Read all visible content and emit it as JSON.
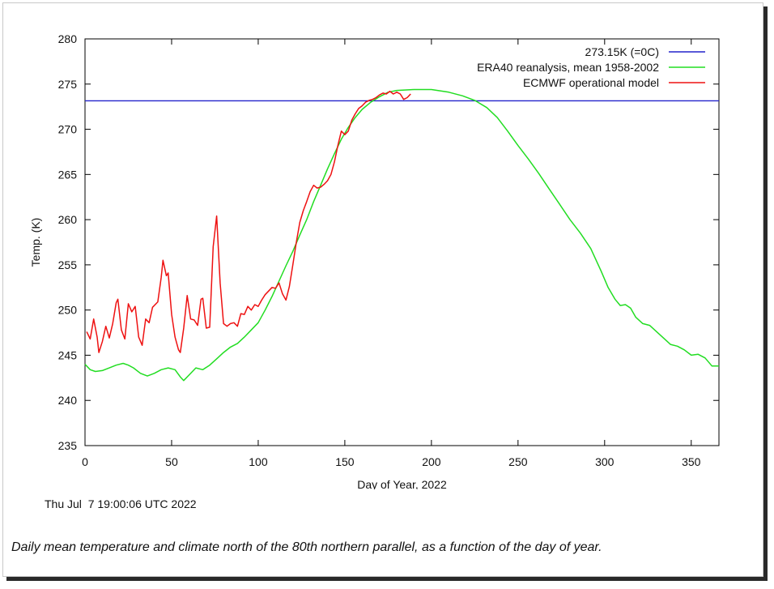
{
  "chart_data": {
    "type": "line",
    "xlabel": "Day of Year, 2022",
    "ylabel": "Temp. (K)",
    "xlim": [
      0,
      366
    ],
    "ylim": [
      235,
      280
    ],
    "xticks": [
      0,
      50,
      100,
      150,
      200,
      250,
      300,
      350
    ],
    "yticks": [
      235,
      240,
      245,
      250,
      255,
      260,
      265,
      270,
      275,
      280
    ],
    "legend_position": "top-right",
    "grid": false,
    "series": [
      {
        "name": "273.15K (=0C)",
        "color": "#2222cc",
        "kind": "hline",
        "y": 273.15
      },
      {
        "name": "ERA40 reanalysis, mean 1958-2002",
        "color": "#22dd22",
        "points": [
          [
            0,
            244.0
          ],
          [
            3,
            243.4
          ],
          [
            6,
            243.2
          ],
          [
            10,
            243.3
          ],
          [
            14,
            243.6
          ],
          [
            18,
            243.9
          ],
          [
            22,
            244.1
          ],
          [
            25,
            243.9
          ],
          [
            28,
            243.6
          ],
          [
            32,
            243.0
          ],
          [
            36,
            242.7
          ],
          [
            40,
            243.0
          ],
          [
            44,
            243.4
          ],
          [
            48,
            243.6
          ],
          [
            52,
            243.4
          ],
          [
            55,
            242.6
          ],
          [
            57,
            242.2
          ],
          [
            60,
            242.8
          ],
          [
            64,
            243.6
          ],
          [
            68,
            243.4
          ],
          [
            72,
            243.9
          ],
          [
            76,
            244.6
          ],
          [
            80,
            245.3
          ],
          [
            84,
            245.9
          ],
          [
            88,
            246.3
          ],
          [
            92,
            247.0
          ],
          [
            96,
            247.8
          ],
          [
            100,
            248.6
          ],
          [
            104,
            250.0
          ],
          [
            108,
            251.5
          ],
          [
            112,
            253.2
          ],
          [
            116,
            254.9
          ],
          [
            120,
            256.5
          ],
          [
            124,
            258.3
          ],
          [
            128,
            260.0
          ],
          [
            132,
            262.0
          ],
          [
            136,
            263.8
          ],
          [
            140,
            265.6
          ],
          [
            144,
            267.3
          ],
          [
            148,
            268.9
          ],
          [
            152,
            270.2
          ],
          [
            156,
            271.3
          ],
          [
            160,
            272.2
          ],
          [
            165,
            273.0
          ],
          [
            170,
            273.6
          ],
          [
            175,
            274.1
          ],
          [
            180,
            274.3
          ],
          [
            190,
            274.4
          ],
          [
            200,
            274.4
          ],
          [
            210,
            274.1
          ],
          [
            218,
            273.7
          ],
          [
            225,
            273.2
          ],
          [
            232,
            272.4
          ],
          [
            238,
            271.3
          ],
          [
            244,
            269.8
          ],
          [
            250,
            268.2
          ],
          [
            256,
            266.7
          ],
          [
            262,
            265.1
          ],
          [
            268,
            263.4
          ],
          [
            274,
            261.7
          ],
          [
            280,
            260.0
          ],
          [
            286,
            258.5
          ],
          [
            292,
            256.8
          ],
          [
            298,
            254.3
          ],
          [
            302,
            252.5
          ],
          [
            306,
            251.2
          ],
          [
            309,
            250.5
          ],
          [
            312,
            250.6
          ],
          [
            315,
            250.2
          ],
          [
            318,
            249.2
          ],
          [
            322,
            248.5
          ],
          [
            326,
            248.3
          ],
          [
            330,
            247.6
          ],
          [
            334,
            246.9
          ],
          [
            338,
            246.2
          ],
          [
            342,
            246.0
          ],
          [
            346,
            245.6
          ],
          [
            350,
            245.0
          ],
          [
            354,
            245.1
          ],
          [
            358,
            244.7
          ],
          [
            362,
            243.8
          ],
          [
            366,
            243.8
          ]
        ]
      },
      {
        "name": "ECMWF operational model",
        "color": "#ee1111",
        "points": [
          [
            1,
            247.6
          ],
          [
            3,
            246.8
          ],
          [
            5,
            249.0
          ],
          [
            7,
            247.0
          ],
          [
            8,
            245.3
          ],
          [
            10,
            246.5
          ],
          [
            12,
            248.2
          ],
          [
            14,
            246.9
          ],
          [
            16,
            248.5
          ],
          [
            18,
            250.8
          ],
          [
            19,
            251.2
          ],
          [
            21,
            247.8
          ],
          [
            23,
            246.8
          ],
          [
            25,
            250.7
          ],
          [
            27,
            249.8
          ],
          [
            29,
            250.4
          ],
          [
            31,
            247.0
          ],
          [
            33,
            246.1
          ],
          [
            35,
            249.0
          ],
          [
            37,
            248.6
          ],
          [
            39,
            250.3
          ],
          [
            42,
            250.9
          ],
          [
            44,
            253.6
          ],
          [
            45,
            255.5
          ],
          [
            47,
            253.8
          ],
          [
            48,
            254.1
          ],
          [
            50,
            249.5
          ],
          [
            52,
            247.0
          ],
          [
            54,
            245.6
          ],
          [
            55,
            245.3
          ],
          [
            57,
            248.0
          ],
          [
            59,
            251.6
          ],
          [
            61,
            249.0
          ],
          [
            63,
            248.9
          ],
          [
            65,
            248.3
          ],
          [
            67,
            251.2
          ],
          [
            68,
            251.3
          ],
          [
            70,
            248.0
          ],
          [
            72,
            248.1
          ],
          [
            74,
            257.0
          ],
          [
            76,
            260.4
          ],
          [
            78,
            253.0
          ],
          [
            80,
            248.5
          ],
          [
            82,
            248.2
          ],
          [
            84,
            248.5
          ],
          [
            86,
            248.6
          ],
          [
            88,
            248.2
          ],
          [
            90,
            249.6
          ],
          [
            92,
            249.5
          ],
          [
            94,
            250.4
          ],
          [
            96,
            250.0
          ],
          [
            98,
            250.6
          ],
          [
            100,
            250.4
          ],
          [
            102,
            251.1
          ],
          [
            104,
            251.7
          ],
          [
            106,
            252.1
          ],
          [
            108,
            252.5
          ],
          [
            110,
            252.4
          ],
          [
            112,
            253.0
          ],
          [
            114,
            251.8
          ],
          [
            116,
            251.1
          ],
          [
            118,
            252.6
          ],
          [
            120,
            255.0
          ],
          [
            122,
            257.5
          ],
          [
            124,
            259.7
          ],
          [
            126,
            261.0
          ],
          [
            128,
            262.0
          ],
          [
            130,
            263.1
          ],
          [
            132,
            263.8
          ],
          [
            134,
            263.5
          ],
          [
            136,
            263.6
          ],
          [
            138,
            263.9
          ],
          [
            140,
            264.3
          ],
          [
            142,
            265.0
          ],
          [
            144,
            266.4
          ],
          [
            146,
            268.2
          ],
          [
            148,
            269.8
          ],
          [
            150,
            269.4
          ],
          [
            152,
            269.8
          ],
          [
            154,
            271.0
          ],
          [
            156,
            271.7
          ],
          [
            158,
            272.3
          ],
          [
            160,
            272.6
          ],
          [
            162,
            273.0
          ],
          [
            164,
            273.2
          ],
          [
            166,
            273.3
          ],
          [
            168,
            273.5
          ],
          [
            170,
            273.8
          ],
          [
            172,
            274.0
          ],
          [
            174,
            273.9
          ],
          [
            176,
            274.2
          ],
          [
            178,
            273.9
          ],
          [
            180,
            274.1
          ],
          [
            182,
            273.9
          ],
          [
            184,
            273.3
          ],
          [
            186,
            273.5
          ],
          [
            188,
            273.9
          ]
        ]
      }
    ]
  },
  "timestamp": "Thu Jul  7 19:00:06 UTC 2022",
  "caption": "Daily mean temperature and climate north of the 80th northern parallel, as a function of the day of year."
}
